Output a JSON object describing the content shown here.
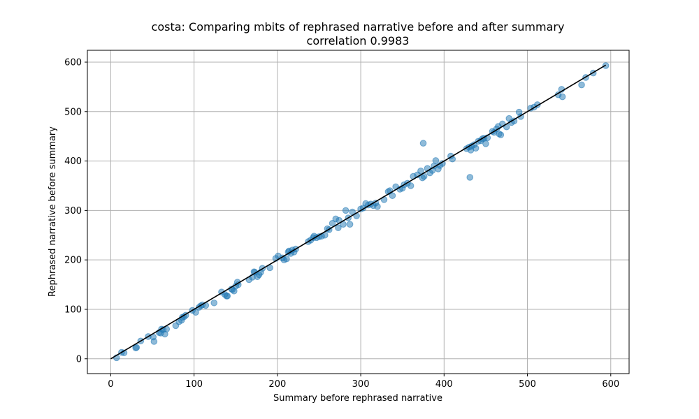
{
  "chart_data": {
    "type": "scatter",
    "title": "costa: Comparing mbits of rephrased narrative before and after summary",
    "subtitle": "correlation 0.9983",
    "xlabel": "Summary before rephrased narrative",
    "ylabel": "Rephrased narrative before summary",
    "xlim": [
      -28,
      622
    ],
    "ylim": [
      -30,
      624
    ],
    "xticks": [
      0,
      100,
      200,
      300,
      400,
      500,
      600
    ],
    "yticks": [
      0,
      100,
      200,
      300,
      400,
      500,
      600
    ],
    "grid": true,
    "point_color": "#1f77b4",
    "line_color": "#000000",
    "reference_line": {
      "x": [
        0,
        594
      ],
      "y": [
        0,
        594
      ]
    },
    "points": {
      "x": [
        7,
        13,
        16,
        30,
        31,
        36,
        45,
        51,
        52,
        58,
        60,
        61,
        63,
        65,
        67,
        78,
        82,
        85,
        86,
        88,
        90,
        98,
        102,
        106,
        108,
        110,
        114,
        124,
        133,
        137,
        139,
        140,
        145,
        146,
        148,
        150,
        152,
        153,
        166,
        170,
        172,
        173,
        176,
        178,
        180,
        182,
        191,
        198,
        201,
        206,
        208,
        211,
        213,
        214,
        216,
        218,
        220,
        222,
        237,
        240,
        243,
        244,
        247,
        250,
        253,
        257,
        260,
        262,
        266,
        270,
        273,
        274,
        279,
        282,
        285,
        287,
        290,
        295,
        300,
        303,
        306,
        309,
        312,
        315,
        318,
        320,
        328,
        333,
        335,
        338,
        342,
        347,
        350,
        352,
        356,
        360,
        363,
        368,
        372,
        374,
        375,
        376,
        380,
        383,
        386,
        388,
        390,
        393,
        395,
        398,
        408,
        410,
        427,
        430,
        431,
        432,
        433,
        436,
        438,
        441,
        444,
        446,
        448,
        450,
        452,
        458,
        460,
        463,
        465,
        466,
        468,
        470,
        475,
        478,
        481,
        484,
        490,
        492,
        504,
        508,
        512,
        537,
        541,
        542,
        565,
        570,
        579,
        594
      ],
      "y": [
        2,
        13,
        12,
        22,
        23,
        36,
        45,
        44,
        35,
        53,
        52,
        60,
        59,
        50,
        60,
        67,
        75,
        78,
        84,
        85,
        88,
        98,
        94,
        104,
        107,
        109,
        108,
        113,
        135,
        130,
        127,
        127,
        141,
        140,
        137,
        147,
        155,
        150,
        160,
        165,
        176,
        175,
        166,
        170,
        175,
        183,
        184,
        203,
        208,
        204,
        200,
        202,
        216,
        218,
        213,
        220,
        216,
        222,
        237,
        240,
        245,
        248,
        245,
        247,
        248,
        250,
        263,
        261,
        274,
        283,
        265,
        280,
        272,
        300,
        285,
        272,
        297,
        289,
        303,
        305,
        314,
        311,
        313,
        310,
        315,
        308,
        322,
        338,
        340,
        330,
        348,
        343,
        345,
        352,
        355,
        350,
        369,
        372,
        380,
        366,
        436,
        369,
        385,
        376,
        381,
        390,
        401,
        384,
        391,
        395,
        410,
        404,
        425,
        428,
        367,
        422,
        430,
        433,
        426,
        440,
        441,
        445,
        446,
        435,
        447,
        460,
        458,
        465,
        470,
        455,
        453,
        475,
        469,
        486,
        478,
        481,
        499,
        490,
        507,
        509,
        514,
        534,
        545,
        530,
        554,
        569,
        578,
        593
      ]
    }
  }
}
